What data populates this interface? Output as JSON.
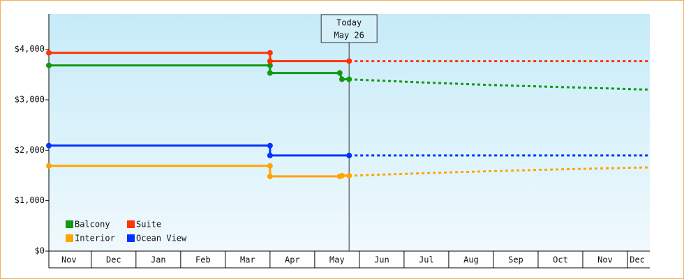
{
  "chart_data": {
    "type": "line",
    "ylim": [
      0,
      4700
    ],
    "yticks": [
      {
        "value": 0,
        "label": "$0"
      },
      {
        "value": 1000,
        "label": "$1,000"
      },
      {
        "value": 2000,
        "label": "$2,000"
      },
      {
        "value": 3000,
        "label": "$3,000"
      },
      {
        "value": 4000,
        "label": "$4,000"
      }
    ],
    "xlim": [
      0.05,
      13.5
    ],
    "xticks": [
      {
        "value": 0.5,
        "label": "Nov"
      },
      {
        "value": 1.5,
        "label": "Dec"
      },
      {
        "value": 2.5,
        "label": "Jan"
      },
      {
        "value": 3.5,
        "label": "Feb"
      },
      {
        "value": 4.5,
        "label": "Mar"
      },
      {
        "value": 5.5,
        "label": "Apr"
      },
      {
        "value": 6.5,
        "label": "May"
      },
      {
        "value": 7.5,
        "label": "Jun"
      },
      {
        "value": 8.5,
        "label": "Jul"
      },
      {
        "value": 9.5,
        "label": "Aug"
      },
      {
        "value": 10.5,
        "label": "Sep"
      },
      {
        "value": 11.5,
        "label": "Oct"
      },
      {
        "value": 12.5,
        "label": "Nov"
      },
      {
        "value": 13.22,
        "label": "Dec"
      }
    ],
    "today": {
      "x": 6.77,
      "label": [
        "Today",
        "May 26"
      ]
    },
    "series": [
      {
        "name": "Balcony",
        "color": "#119911",
        "x": [
          0.05,
          5.0,
          5.0,
          6.56,
          6.61,
          6.77
        ],
        "values": [
          3680,
          3680,
          3530,
          3530,
          3405,
          3405
        ],
        "forecast": {
          "x": [
            6.77,
            8.2,
            10,
            13.5
          ],
          "values": [
            3405,
            3350,
            3290,
            3200
          ]
        }
      },
      {
        "name": "Suite",
        "color": "#ff3300",
        "x": [
          0.05,
          5.0,
          5.0,
          6.77
        ],
        "values": [
          3930,
          3930,
          3765,
          3765
        ],
        "forecast": {
          "x": [
            6.77,
            13.5
          ],
          "values": [
            3765,
            3765
          ]
        }
      },
      {
        "name": "Interior",
        "color": "#ffa500",
        "x": [
          0.05,
          5.0,
          5.0,
          6.56,
          6.61,
          6.77
        ],
        "values": [
          1690,
          1690,
          1480,
          1480,
          1495,
          1495
        ],
        "forecast": {
          "x": [
            6.77,
            9,
            11,
            13.5
          ],
          "values": [
            1495,
            1560,
            1610,
            1660
          ]
        }
      },
      {
        "name": "Ocean View",
        "color": "#0033ff",
        "x": [
          0.05,
          5.0,
          5.0,
          6.77
        ],
        "values": [
          2090,
          2090,
          1895,
          1895
        ],
        "forecast": {
          "x": [
            6.77,
            13.5
          ],
          "values": [
            1895,
            1895
          ]
        }
      }
    ]
  }
}
